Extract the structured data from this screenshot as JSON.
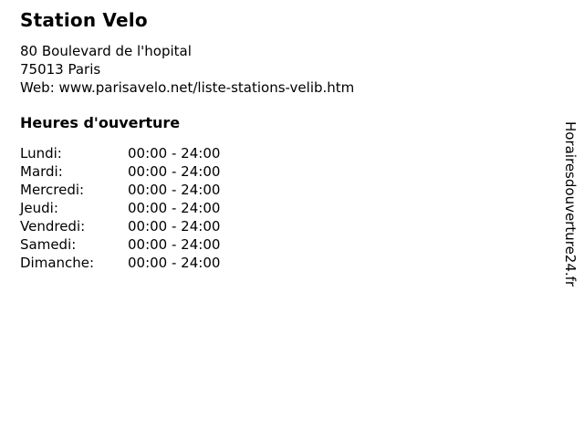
{
  "page": {
    "title": "Station Velo"
  },
  "contact": {
    "address_line1": "80 Boulevard de l'hopital",
    "address_line2": "75013 Paris",
    "web_label": "Web:",
    "web_url": "www.parisavelo.net/liste-stations-velib.htm"
  },
  "hours": {
    "heading": "Heures d'ouverture",
    "rows": [
      {
        "day": "Lundi:",
        "time": "00:00 - 24:00"
      },
      {
        "day": "Mardi:",
        "time": "00:00 - 24:00"
      },
      {
        "day": "Mercredi:",
        "time": "00:00 - 24:00"
      },
      {
        "day": "Jeudi:",
        "time": "00:00 - 24:00"
      },
      {
        "day": "Vendredi:",
        "time": "00:00 - 24:00"
      },
      {
        "day": "Samedi:",
        "time": "00:00 - 24:00"
      },
      {
        "day": "Dimanche:",
        "time": "00:00 - 24:00"
      }
    ]
  },
  "watermark": {
    "text": "Horairesdouverture24.fr"
  }
}
